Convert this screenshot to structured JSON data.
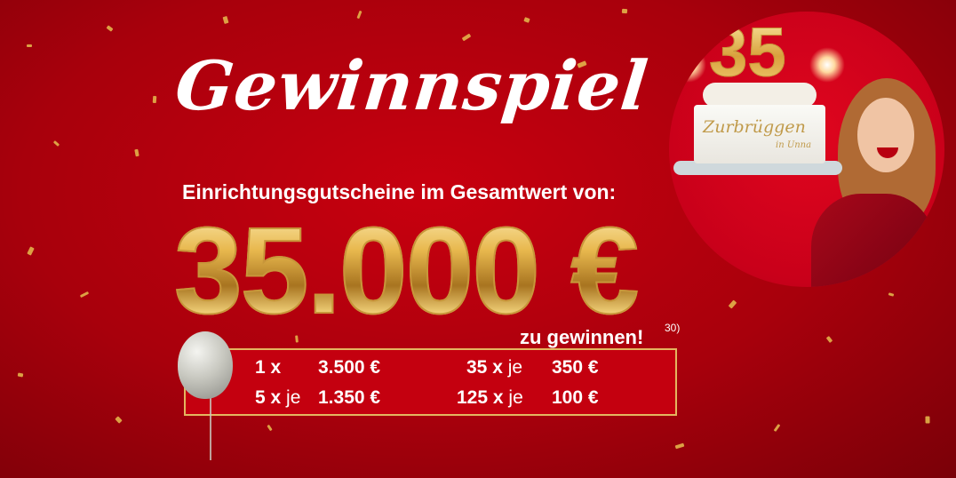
{
  "banner": {
    "title": "Gewinnspiel",
    "subtitle": "Einrichtungsgutscheine im Gesamtwert von:",
    "amount": "35.000 €",
    "win_text": "zu gewinnen!",
    "footnote": "30)",
    "prizes": [
      {
        "count": "1 x",
        "je": "",
        "value": "3.500 €"
      },
      {
        "count": "5 x",
        "je": "je",
        "value": "1.350 €"
      },
      {
        "count": "35 x",
        "je": "je",
        "value": "350 €"
      },
      {
        "count": "125 x",
        "je": "je",
        "value": "100 €"
      }
    ],
    "image": {
      "number": "35",
      "cake_text": "Zurbrüggen",
      "cake_subtext": "in Unna"
    },
    "colors": {
      "background": "#b3000d",
      "gold": "#e2b24a",
      "box": "#c4000f"
    }
  }
}
